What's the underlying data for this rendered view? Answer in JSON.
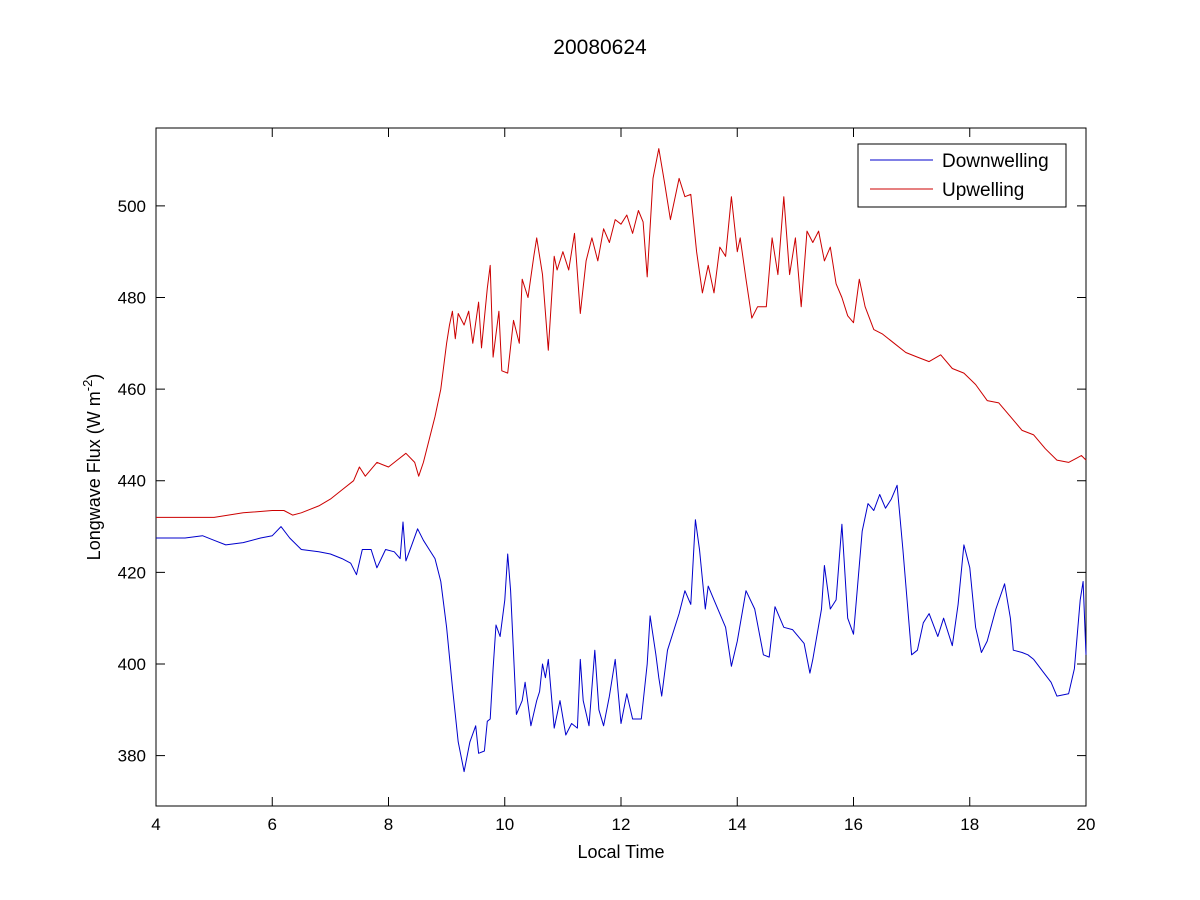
{
  "chart_data": {
    "type": "line",
    "title": "20080624",
    "xlabel": "Local Time",
    "ylabel": "Longwave Flux (W m",
    "ylabel_superscript": "-2",
    "ylabel_close": ")",
    "xlim": [
      4,
      20
    ],
    "ylim": [
      369,
      517
    ],
    "xticks": [
      4,
      6,
      8,
      10,
      12,
      14,
      16,
      18,
      20
    ],
    "yticks": [
      380,
      400,
      420,
      440,
      460,
      480,
      500
    ],
    "grid": false,
    "legend": "top-right",
    "series": [
      {
        "name": "Downwelling",
        "color": "#0000cc",
        "points": [
          [
            4.0,
            427.5
          ],
          [
            4.5,
            427.5
          ],
          [
            4.8,
            428.0
          ],
          [
            5.0,
            427.0
          ],
          [
            5.2,
            426.0
          ],
          [
            5.5,
            426.5
          ],
          [
            5.8,
            427.5
          ],
          [
            6.0,
            428.0
          ],
          [
            6.15,
            430.0
          ],
          [
            6.3,
            427.5
          ],
          [
            6.5,
            425.0
          ],
          [
            6.8,
            424.5
          ],
          [
            7.0,
            424.0
          ],
          [
            7.2,
            423.0
          ],
          [
            7.35,
            422.0
          ],
          [
            7.45,
            419.5
          ],
          [
            7.55,
            425.0
          ],
          [
            7.7,
            425.0
          ],
          [
            7.8,
            421.0
          ],
          [
            7.95,
            425.0
          ],
          [
            8.1,
            424.5
          ],
          [
            8.2,
            423.0
          ],
          [
            8.25,
            431.0
          ],
          [
            8.3,
            422.5
          ],
          [
            8.4,
            426.0
          ],
          [
            8.5,
            429.5
          ],
          [
            8.6,
            427.0
          ],
          [
            8.7,
            425.0
          ],
          [
            8.8,
            423.0
          ],
          [
            8.9,
            418.0
          ],
          [
            9.0,
            408.0
          ],
          [
            9.1,
            395.0
          ],
          [
            9.2,
            383.0
          ],
          [
            9.3,
            376.5
          ],
          [
            9.4,
            383.0
          ],
          [
            9.5,
            386.5
          ],
          [
            9.55,
            380.5
          ],
          [
            9.65,
            381.0
          ],
          [
            9.7,
            387.5
          ],
          [
            9.75,
            388.0
          ],
          [
            9.8,
            399.0
          ],
          [
            9.85,
            408.5
          ],
          [
            9.92,
            406.0
          ],
          [
            10.0,
            414.0
          ],
          [
            10.05,
            424.0
          ],
          [
            10.1,
            416.0
          ],
          [
            10.2,
            389.0
          ],
          [
            10.3,
            392.0
          ],
          [
            10.35,
            396.0
          ],
          [
            10.45,
            386.5
          ],
          [
            10.55,
            392.0
          ],
          [
            10.6,
            394.0
          ],
          [
            10.65,
            400.0
          ],
          [
            10.7,
            397.0
          ],
          [
            10.75,
            401.0
          ],
          [
            10.85,
            386.0
          ],
          [
            10.95,
            392.0
          ],
          [
            11.05,
            384.5
          ],
          [
            11.15,
            387.0
          ],
          [
            11.25,
            386.0
          ],
          [
            11.3,
            401.0
          ],
          [
            11.35,
            392.0
          ],
          [
            11.45,
            386.5
          ],
          [
            11.55,
            403.0
          ],
          [
            11.62,
            390.0
          ],
          [
            11.7,
            386.5
          ],
          [
            11.8,
            393.0
          ],
          [
            11.9,
            401.0
          ],
          [
            12.0,
            387.0
          ],
          [
            12.1,
            393.5
          ],
          [
            12.2,
            388.0
          ],
          [
            12.35,
            388.0
          ],
          [
            12.45,
            400.0
          ],
          [
            12.5,
            410.5
          ],
          [
            12.6,
            402.0
          ],
          [
            12.65,
            397.0
          ],
          [
            12.7,
            393.0
          ],
          [
            12.8,
            403.0
          ],
          [
            13.0,
            411.0
          ],
          [
            13.1,
            416.0
          ],
          [
            13.2,
            413.0
          ],
          [
            13.28,
            431.5
          ],
          [
            13.35,
            425.0
          ],
          [
            13.45,
            412.0
          ],
          [
            13.5,
            417.0
          ],
          [
            13.6,
            414.0
          ],
          [
            13.8,
            408.0
          ],
          [
            13.9,
            399.5
          ],
          [
            14.0,
            405.0
          ],
          [
            14.15,
            416.0
          ],
          [
            14.3,
            412.0
          ],
          [
            14.45,
            402.0
          ],
          [
            14.55,
            401.5
          ],
          [
            14.65,
            412.5
          ],
          [
            14.8,
            408.0
          ],
          [
            14.95,
            407.5
          ],
          [
            15.15,
            404.5
          ],
          [
            15.25,
            398.0
          ],
          [
            15.3,
            401.0
          ],
          [
            15.45,
            412.0
          ],
          [
            15.5,
            421.5
          ],
          [
            15.6,
            412.0
          ],
          [
            15.7,
            414.0
          ],
          [
            15.8,
            430.5
          ],
          [
            15.9,
            410.0
          ],
          [
            16.0,
            406.5
          ],
          [
            16.15,
            429.0
          ],
          [
            16.25,
            435.0
          ],
          [
            16.35,
            433.5
          ],
          [
            16.45,
            437.0
          ],
          [
            16.55,
            434.0
          ],
          [
            16.65,
            436.0
          ],
          [
            16.75,
            439.0
          ],
          [
            16.85,
            425.0
          ],
          [
            17.0,
            402.0
          ],
          [
            17.1,
            403.0
          ],
          [
            17.2,
            409.0
          ],
          [
            17.3,
            411.0
          ],
          [
            17.45,
            406.0
          ],
          [
            17.55,
            410.0
          ],
          [
            17.7,
            404.0
          ],
          [
            17.8,
            413.0
          ],
          [
            17.9,
            426.0
          ],
          [
            18.0,
            421.0
          ],
          [
            18.1,
            408.0
          ],
          [
            18.2,
            402.5
          ],
          [
            18.3,
            405.0
          ],
          [
            18.45,
            412.0
          ],
          [
            18.6,
            417.5
          ],
          [
            18.7,
            410.0
          ],
          [
            18.75,
            403.0
          ],
          [
            18.9,
            402.5
          ],
          [
            19.0,
            402.0
          ],
          [
            19.1,
            401.0
          ],
          [
            19.25,
            398.5
          ],
          [
            19.4,
            396.0
          ],
          [
            19.5,
            393.0
          ],
          [
            19.7,
            393.5
          ],
          [
            19.8,
            399.0
          ],
          [
            19.9,
            414.0
          ],
          [
            19.95,
            418.0
          ],
          [
            20.0,
            402.0
          ]
        ]
      },
      {
        "name": "Upwelling",
        "color": "#cc0000",
        "points": [
          [
            4.0,
            432.0
          ],
          [
            4.5,
            432.0
          ],
          [
            5.0,
            432.0
          ],
          [
            5.5,
            433.0
          ],
          [
            6.0,
            433.5
          ],
          [
            6.2,
            433.5
          ],
          [
            6.35,
            432.5
          ],
          [
            6.5,
            433.0
          ],
          [
            6.8,
            434.5
          ],
          [
            7.0,
            436.0
          ],
          [
            7.2,
            438.0
          ],
          [
            7.4,
            440.0
          ],
          [
            7.5,
            443.0
          ],
          [
            7.6,
            441.0
          ],
          [
            7.8,
            444.0
          ],
          [
            8.0,
            443.0
          ],
          [
            8.15,
            444.5
          ],
          [
            8.3,
            446.0
          ],
          [
            8.45,
            444.0
          ],
          [
            8.52,
            441.0
          ],
          [
            8.6,
            444.0
          ],
          [
            8.7,
            449.0
          ],
          [
            8.8,
            454.0
          ],
          [
            8.9,
            460.0
          ],
          [
            9.0,
            470.0
          ],
          [
            9.05,
            474.0
          ],
          [
            9.1,
            477.0
          ],
          [
            9.15,
            471.0
          ],
          [
            9.2,
            476.5
          ],
          [
            9.3,
            474.0
          ],
          [
            9.38,
            477.0
          ],
          [
            9.45,
            470.0
          ],
          [
            9.55,
            479.0
          ],
          [
            9.6,
            469.0
          ],
          [
            9.7,
            482.0
          ],
          [
            9.75,
            487.0
          ],
          [
            9.8,
            467.0
          ],
          [
            9.9,
            477.0
          ],
          [
            9.95,
            464.0
          ],
          [
            10.05,
            463.5
          ],
          [
            10.15,
            475.0
          ],
          [
            10.25,
            470.0
          ],
          [
            10.3,
            484.0
          ],
          [
            10.4,
            480.0
          ],
          [
            10.5,
            489.0
          ],
          [
            10.55,
            493.0
          ],
          [
            10.65,
            485.0
          ],
          [
            10.75,
            468.5
          ],
          [
            10.85,
            489.0
          ],
          [
            10.9,
            486.0
          ],
          [
            11.0,
            490.0
          ],
          [
            11.1,
            486.0
          ],
          [
            11.2,
            494.0
          ],
          [
            11.3,
            476.5
          ],
          [
            11.4,
            488.0
          ],
          [
            11.5,
            493.0
          ],
          [
            11.6,
            488.0
          ],
          [
            11.7,
            495.0
          ],
          [
            11.8,
            492.0
          ],
          [
            11.9,
            497.0
          ],
          [
            12.0,
            496.0
          ],
          [
            12.1,
            498.0
          ],
          [
            12.2,
            494.0
          ],
          [
            12.3,
            499.0
          ],
          [
            12.38,
            496.5
          ],
          [
            12.45,
            484.5
          ],
          [
            12.55,
            506.0
          ],
          [
            12.65,
            512.5
          ],
          [
            12.75,
            505.0
          ],
          [
            12.85,
            497.0
          ],
          [
            13.0,
            506.0
          ],
          [
            13.1,
            502.0
          ],
          [
            13.2,
            502.5
          ],
          [
            13.3,
            490.0
          ],
          [
            13.4,
            481.0
          ],
          [
            13.5,
            487.0
          ],
          [
            13.6,
            481.0
          ],
          [
            13.7,
            491.0
          ],
          [
            13.8,
            489.0
          ],
          [
            13.9,
            502.0
          ],
          [
            14.0,
            490.0
          ],
          [
            14.05,
            493.0
          ],
          [
            14.15,
            484.0
          ],
          [
            14.25,
            475.5
          ],
          [
            14.35,
            478.0
          ],
          [
            14.5,
            478.0
          ],
          [
            14.6,
            493.0
          ],
          [
            14.7,
            485.0
          ],
          [
            14.8,
            502.0
          ],
          [
            14.9,
            485.0
          ],
          [
            15.0,
            493.0
          ],
          [
            15.1,
            478.0
          ],
          [
            15.2,
            494.5
          ],
          [
            15.3,
            492.0
          ],
          [
            15.4,
            494.5
          ],
          [
            15.5,
            488.0
          ],
          [
            15.6,
            491.0
          ],
          [
            15.7,
            483.0
          ],
          [
            15.8,
            480.0
          ],
          [
            15.9,
            476.0
          ],
          [
            16.0,
            474.5
          ],
          [
            16.1,
            484.0
          ],
          [
            16.2,
            478.0
          ],
          [
            16.35,
            473.0
          ],
          [
            16.5,
            472.0
          ],
          [
            16.7,
            470.0
          ],
          [
            16.9,
            468.0
          ],
          [
            17.1,
            467.0
          ],
          [
            17.3,
            466.0
          ],
          [
            17.5,
            467.5
          ],
          [
            17.7,
            464.5
          ],
          [
            17.9,
            463.5
          ],
          [
            18.1,
            461.0
          ],
          [
            18.3,
            457.5
          ],
          [
            18.5,
            457.0
          ],
          [
            18.7,
            454.0
          ],
          [
            18.9,
            451.0
          ],
          [
            19.1,
            450.0
          ],
          [
            19.3,
            447.0
          ],
          [
            19.5,
            444.5
          ],
          [
            19.7,
            444.0
          ],
          [
            19.85,
            445.0
          ],
          [
            19.92,
            445.5
          ],
          [
            20.0,
            444.5
          ]
        ]
      }
    ]
  }
}
